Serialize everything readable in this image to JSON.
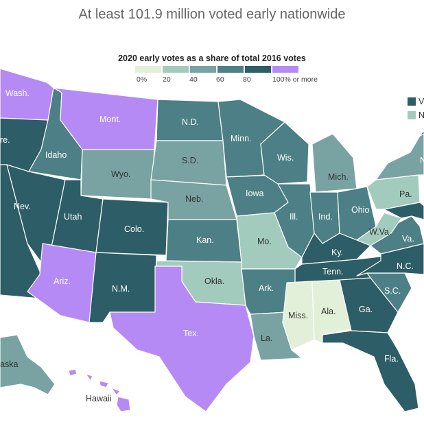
{
  "title": "At least 101.9 million voted early nationwide",
  "legend": {
    "title": "2020 early votes as a share of total 2016 votes",
    "ticks": [
      "0%",
      "20",
      "40",
      "60",
      "80",
      "100% or more"
    ],
    "colors": [
      "#e2f0d9",
      "#a3cbbd",
      "#78a3a2",
      "#4c7f86",
      "#2d5d66",
      "#b68af5"
    ]
  },
  "corner_legend": {
    "items": [
      {
        "text": "V",
        "color": "#2d5d66"
      },
      {
        "text": "N",
        "color": "#a3cbbd"
      }
    ]
  },
  "states": {
    "wa": {
      "label": "Wash.",
      "color": "#b68af5"
    },
    "or": {
      "label": "re.",
      "color": "#2d5d66"
    },
    "mt": {
      "label": "Mont.",
      "color": "#b68af5"
    },
    "id": {
      "label": "Idaho",
      "color": "#4c7f86"
    },
    "wy": {
      "label": "Wyo.",
      "color": "#78a3a2"
    },
    "nd": {
      "label": "N.D.",
      "color": "#4c7f86"
    },
    "sd": {
      "label": "S.D.",
      "color": "#78a3a2"
    },
    "ne": {
      "label": "Neb.",
      "color": "#78a3a2"
    },
    "mn": {
      "label": "Minn.",
      "color": "#4c7f86"
    },
    "wi": {
      "label": "Wis.",
      "color": "#4c7f86"
    },
    "mi": {
      "label": "Mich.",
      "color": "#78a3a2"
    },
    "ia": {
      "label": "Iowa",
      "color": "#4c7f86"
    },
    "nv": {
      "label": "Nev.",
      "color": "#2d5d66"
    },
    "ut": {
      "label": "Utah",
      "color": "#2d5d66"
    },
    "co": {
      "label": "Colo.",
      "color": "#2d5d66"
    },
    "ks": {
      "label": "Kan.",
      "color": "#4c7f86"
    },
    "mo": {
      "label": "Mo.",
      "color": "#a3cbbd"
    },
    "il": {
      "label": "Ill.",
      "color": "#4c7f86"
    },
    "in": {
      "label": "Ind.",
      "color": "#4c7f86"
    },
    "oh": {
      "label": "Ohio",
      "color": "#4c7f86"
    },
    "pa": {
      "label": "Pa.",
      "color": "#a3cbbd"
    },
    "ny": {
      "label": "N",
      "color": "#78a3a2"
    },
    "wv": {
      "label": "W.Va.",
      "color": "#a3cbbd"
    },
    "va": {
      "label": "Va.",
      "color": "#4c7f86"
    },
    "ky": {
      "label": "Ky.",
      "color": "#2d5d66"
    },
    "tn": {
      "label": "Tenn.",
      "color": "#2d5d66"
    },
    "nc": {
      "label": "N.C.",
      "color": "#2d5d66"
    },
    "sc": {
      "label": "S.C.",
      "color": "#4c7f86"
    },
    "az": {
      "label": "Ariz.",
      "color": "#b68af5"
    },
    "nm": {
      "label": "N.M.",
      "color": "#2d5d66"
    },
    "ok": {
      "label": "Okla.",
      "color": "#a3cbbd"
    },
    "ar": {
      "label": "Ark.",
      "color": "#4c7f86"
    },
    "tx": {
      "label": "Tex.",
      "color": "#b68af5"
    },
    "la": {
      "label": "La.",
      "color": "#78a3a2"
    },
    "ms": {
      "label": "Miss.",
      "color": "#e2f0d9"
    },
    "al": {
      "label": "Ala.",
      "color": "#e2f0d9"
    },
    "ga": {
      "label": "Ga.",
      "color": "#2d5d66"
    },
    "fl": {
      "label": "Fla.",
      "color": "#2d5d66"
    },
    "ca": {
      "label": "",
      "color": "#2d5d66"
    },
    "ak": {
      "label": "aska",
      "color": "#78a3a2"
    },
    "hi": {
      "label": "Hawaii",
      "color": "#b68af5"
    },
    "ne_states": {
      "label": "",
      "color": "#2d5d66"
    },
    "md": {
      "label": "",
      "color": "#2d5d66"
    }
  }
}
